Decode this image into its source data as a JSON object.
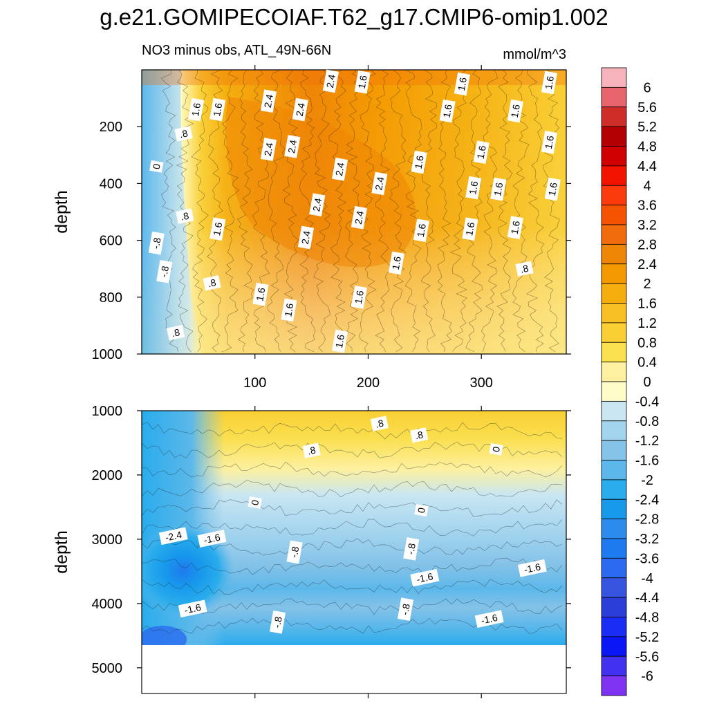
{
  "title": "g.e21.GOMIPECOIAF.T62_g17.CMIP6-omip1.002",
  "subtitle_left": "NO3 minus obs, ATL_49N-66N",
  "subtitle_right": "mmol/m^3",
  "chart_data": [
    {
      "type": "heatmap",
      "panel": "top",
      "ylabel": "depth",
      "y_reversed": true,
      "ylim": [
        0,
        1000
      ],
      "xlim": [
        0,
        375
      ],
      "yticks": [
        200,
        400,
        600,
        800,
        1000
      ],
      "xticks": [
        100,
        200,
        300
      ],
      "xtick_labels": [
        "100",
        "200",
        "300"
      ],
      "contour_labels": [
        {
          "text": "2.4",
          "x": 167,
          "y": 40
        },
        {
          "text": "1.6",
          "x": 195,
          "y": 43
        },
        {
          "text": "1.6",
          "x": 283,
          "y": 50
        },
        {
          "text": "1.6",
          "x": 360,
          "y": 45
        },
        {
          "text": "1.6",
          "x": 48,
          "y": 140
        },
        {
          "text": "1.6",
          "x": 67,
          "y": 140
        },
        {
          "text": "2.4",
          "x": 112,
          "y": 110
        },
        {
          "text": "2.4",
          "x": 140,
          "y": 140
        },
        {
          "text": "1.6",
          "x": 270,
          "y": 145
        },
        {
          "text": "1.6",
          "x": 330,
          "y": 145
        },
        {
          "text": ".8",
          "x": 37,
          "y": 225
        },
        {
          "text": "2.4",
          "x": 112,
          "y": 280
        },
        {
          "text": "2.4",
          "x": 133,
          "y": 270
        },
        {
          "text": "1.6",
          "x": 360,
          "y": 255
        },
        {
          "text": "1.6",
          "x": 300,
          "y": 290
        },
        {
          "text": "1.6",
          "x": 245,
          "y": 325
        },
        {
          "text": "0",
          "x": 13,
          "y": 340
        },
        {
          "text": "2.4",
          "x": 175,
          "y": 350
        },
        {
          "text": "2.4",
          "x": 210,
          "y": 400
        },
        {
          "text": "1.6",
          "x": 293,
          "y": 415
        },
        {
          "text": "1.6",
          "x": 315,
          "y": 420
        },
        {
          "text": "1.6",
          "x": 363,
          "y": 420
        },
        {
          "text": "2.4",
          "x": 155,
          "y": 475
        },
        {
          "text": ".8",
          "x": 38,
          "y": 515
        },
        {
          "text": "2.4",
          "x": 192,
          "y": 520
        },
        {
          "text": "1.6",
          "x": 67,
          "y": 560
        },
        {
          "text": "1.6",
          "x": 290,
          "y": 560
        },
        {
          "text": "2.4",
          "x": 145,
          "y": 590
        },
        {
          "text": "1.6",
          "x": 247,
          "y": 565
        },
        {
          "text": "1.6",
          "x": 330,
          "y": 555
        },
        {
          "text": "-.8",
          "x": 13,
          "y": 610
        },
        {
          "text": "1.6",
          "x": 225,
          "y": 680
        },
        {
          "text": "-.8",
          "x": 20,
          "y": 710
        },
        {
          "text": ".8",
          "x": 338,
          "y": 700
        },
        {
          "text": ".8",
          "x": 62,
          "y": 750
        },
        {
          "text": "1.6",
          "x": 105,
          "y": 790
        },
        {
          "text": "1.6",
          "x": 192,
          "y": 800
        },
        {
          "text": "1.6",
          "x": 130,
          "y": 845
        },
        {
          "text": ".8",
          "x": 30,
          "y": 925
        },
        {
          "text": "1.6",
          "x": 175,
          "y": 955
        }
      ]
    },
    {
      "type": "heatmap",
      "panel": "bottom",
      "ylabel": "depth",
      "y_reversed": true,
      "ylim": [
        1000,
        5400
      ],
      "xlim": [
        0,
        375
      ],
      "bottom_of_data": 4650,
      "yticks": [
        1000,
        2000,
        3000,
        4000,
        5000
      ],
      "xticks": [
        100,
        200,
        300
      ],
      "contour_labels": [
        {
          "text": ".8",
          "x": 210,
          "y": 1200
        },
        {
          "text": ".8",
          "x": 245,
          "y": 1380
        },
        {
          "text": ".8",
          "x": 150,
          "y": 1620
        },
        {
          "text": "0",
          "x": 313,
          "y": 1600
        },
        {
          "text": "0",
          "x": 100,
          "y": 2430
        },
        {
          "text": "0",
          "x": 247,
          "y": 2550
        },
        {
          "text": "-2.4",
          "x": 28,
          "y": 2950
        },
        {
          "text": "-1.6",
          "x": 62,
          "y": 2990
        },
        {
          "text": "-.8",
          "x": 135,
          "y": 3200
        },
        {
          "text": "-.8",
          "x": 238,
          "y": 3150
        },
        {
          "text": "-1.6",
          "x": 345,
          "y": 3450
        },
        {
          "text": "-1.6",
          "x": 250,
          "y": 3600
        },
        {
          "text": "-1.6",
          "x": 45,
          "y": 4080
        },
        {
          "text": "-.8",
          "x": 233,
          "y": 4090
        },
        {
          "text": "-.8",
          "x": 120,
          "y": 4290
        },
        {
          "text": "-1.6",
          "x": 307,
          "y": 4240
        }
      ]
    }
  ],
  "colorbar": {
    "labels": [
      "6",
      "5.6",
      "5.2",
      "4.8",
      "4.4",
      "4",
      "3.6",
      "3.2",
      "2.8",
      "2.4",
      "2",
      "1.6",
      "1.2",
      "0.8",
      "0.4",
      "0",
      "-0.4",
      "-0.8",
      "-1.2",
      "-1.6",
      "-2",
      "-2.4",
      "-2.8",
      "-3.2",
      "-3.6",
      "-4",
      "-4.4",
      "-4.8",
      "-5.2",
      "-5.6",
      "-6"
    ],
    "colors": [
      "#f7b3bb",
      "#e8656e",
      "#cf2e28",
      "#b30000",
      "#d10000",
      "#f21400",
      "#fa3a0a",
      "#f55300",
      "#f06c0c",
      "#ef8504",
      "#f49900",
      "#f5ae0d",
      "#f7bf22",
      "#f9cf33",
      "#fadf4f",
      "#fdf0a0",
      "#fefcc8",
      "#c9e6f2",
      "#a3d4ee",
      "#84c2e8",
      "#5cb8ea",
      "#2aacec",
      "#1799ec",
      "#2c8cee",
      "#1e7aef",
      "#2c6bf0",
      "#3755e0",
      "#2b3ed8",
      "#1a2df5",
      "#0a16f5",
      "#4232f0",
      "#7d33ef"
    ]
  }
}
